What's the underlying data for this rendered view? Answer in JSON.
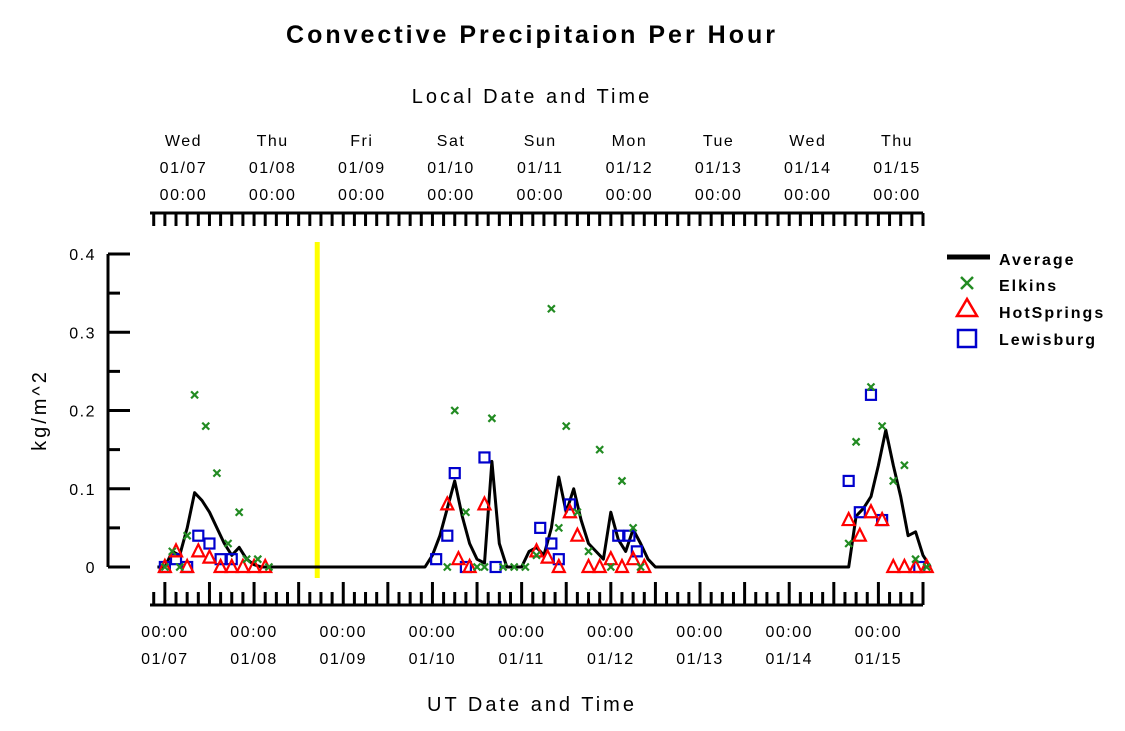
{
  "chart_data": {
    "type": "line",
    "title": "Convective Precipitaion Per Hour",
    "top_axis_label": "Local Date and Time",
    "bottom_axis_label": "UT Date and Time",
    "ylabel": "kg/m^2",
    "ylim": [
      0,
      0.4
    ],
    "y_ticks": [
      "0",
      "0.1",
      "0.2",
      "0.3",
      "0.4"
    ],
    "y_tick_values": [
      0,
      0.1,
      0.2,
      0.3,
      0.4
    ],
    "x_unit": "hours since 01/07 00:00 UT",
    "xlim": [
      -4,
      204
    ],
    "bottom_ticks": [
      {
        "x": 0,
        "time": "00:00",
        "date": "01/07"
      },
      {
        "x": 24,
        "time": "00:00",
        "date": "01/08"
      },
      {
        "x": 48,
        "time": "00:00",
        "date": "01/09"
      },
      {
        "x": 72,
        "time": "00:00",
        "date": "01/10"
      },
      {
        "x": 96,
        "time": "00:00",
        "date": "01/11"
      },
      {
        "x": 120,
        "time": "00:00",
        "date": "01/12"
      },
      {
        "x": 144,
        "time": "00:00",
        "date": "01/13"
      },
      {
        "x": 168,
        "time": "00:00",
        "date": "01/14"
      },
      {
        "x": 192,
        "time": "00:00",
        "date": "01/15"
      }
    ],
    "top_ticks": [
      {
        "x": 5,
        "day": "Wed",
        "date": "01/07",
        "time": "00:00"
      },
      {
        "x": 29,
        "day": "Thu",
        "date": "01/08",
        "time": "00:00"
      },
      {
        "x": 53,
        "day": "Fri",
        "date": "01/09",
        "time": "00:00"
      },
      {
        "x": 77,
        "day": "Sat",
        "date": "01/10",
        "time": "00:00"
      },
      {
        "x": 101,
        "day": "Sun",
        "date": "01/11",
        "time": "00:00"
      },
      {
        "x": 125,
        "day": "Mon",
        "date": "01/12",
        "time": "00:00"
      },
      {
        "x": 149,
        "day": "Tue",
        "date": "01/13",
        "time": "00:00"
      },
      {
        "x": 173,
        "day": "Wed",
        "date": "01/14",
        "time": "00:00"
      },
      {
        "x": 197,
        "day": "Thu",
        "date": "01/15",
        "time": "00:00"
      }
    ],
    "now_marker_x": 41,
    "legend": [
      {
        "name": "Average",
        "marker": "line"
      },
      {
        "name": "Elkins",
        "marker": "x"
      },
      {
        "name": "HotSprings",
        "marker": "triangle"
      },
      {
        "name": "Lewisburg",
        "marker": "square"
      }
    ],
    "series": [
      {
        "name": "Average",
        "color": "#000000",
        "points": [
          [
            -2,
            0
          ],
          [
            0,
            0
          ],
          [
            2,
            0.02
          ],
          [
            4,
            0.015
          ],
          [
            6,
            0.05
          ],
          [
            8,
            0.095
          ],
          [
            10,
            0.085
          ],
          [
            12,
            0.07
          ],
          [
            14,
            0.05
          ],
          [
            16,
            0.03
          ],
          [
            18,
            0.015
          ],
          [
            20,
            0.025
          ],
          [
            22,
            0.01
          ],
          [
            24,
            0.003
          ],
          [
            26,
            0
          ],
          [
            28,
            0
          ],
          [
            30,
            0
          ],
          [
            40,
            0
          ],
          [
            50,
            0
          ],
          [
            60,
            0
          ],
          [
            70,
            0
          ],
          [
            72,
            0.015
          ],
          [
            74,
            0.04
          ],
          [
            76,
            0.075
          ],
          [
            78,
            0.11
          ],
          [
            80,
            0.065
          ],
          [
            82,
            0.03
          ],
          [
            84,
            0.01
          ],
          [
            86,
            0.005
          ],
          [
            88,
            0.135
          ],
          [
            90,
            0.03
          ],
          [
            92,
            0
          ],
          [
            94,
            0
          ],
          [
            96,
            0
          ],
          [
            98,
            0.02
          ],
          [
            100,
            0.025
          ],
          [
            102,
            0.015
          ],
          [
            104,
            0.05
          ],
          [
            106,
            0.115
          ],
          [
            108,
            0.07
          ],
          [
            110,
            0.1
          ],
          [
            112,
            0.06
          ],
          [
            114,
            0.03
          ],
          [
            116,
            0.02
          ],
          [
            118,
            0.01
          ],
          [
            120,
            0.07
          ],
          [
            122,
            0.035
          ],
          [
            124,
            0.02
          ],
          [
            126,
            0.048
          ],
          [
            128,
            0.03
          ],
          [
            130,
            0.01
          ],
          [
            132,
            0
          ],
          [
            134,
            0
          ],
          [
            140,
            0
          ],
          [
            150,
            0
          ],
          [
            160,
            0
          ],
          [
            170,
            0
          ],
          [
            180,
            0
          ],
          [
            184,
            0
          ],
          [
            186,
            0.065
          ],
          [
            188,
            0.075
          ],
          [
            190,
            0.09
          ],
          [
            192,
            0.13
          ],
          [
            194,
            0.175
          ],
          [
            196,
            0.13
          ],
          [
            198,
            0.09
          ],
          [
            200,
            0.04
          ],
          [
            202,
            0.045
          ],
          [
            204,
            0.015
          ],
          [
            206,
            0
          ]
        ]
      },
      {
        "name": "Elkins",
        "color": "#228b22",
        "points": [
          [
            0,
            0
          ],
          [
            2,
            0.02
          ],
          [
            4,
            0
          ],
          [
            6,
            0.04
          ],
          [
            8,
            0.22
          ],
          [
            11,
            0.18
          ],
          [
            14,
            0.12
          ],
          [
            17,
            0.03
          ],
          [
            20,
            0.07
          ],
          [
            22,
            0.01
          ],
          [
            25,
            0.01
          ],
          [
            28,
            0
          ],
          [
            76,
            0
          ],
          [
            78,
            0.2
          ],
          [
            81,
            0.07
          ],
          [
            84,
            0
          ],
          [
            86,
            0
          ],
          [
            88,
            0.19
          ],
          [
            91,
            0
          ],
          [
            94,
            0
          ],
          [
            97,
            0
          ],
          [
            100,
            0.015
          ],
          [
            104,
            0.33
          ],
          [
            106,
            0.05
          ],
          [
            108,
            0.18
          ],
          [
            111,
            0.07
          ],
          [
            114,
            0.02
          ],
          [
            117,
            0.15
          ],
          [
            120,
            0
          ],
          [
            123,
            0.11
          ],
          [
            126,
            0.05
          ],
          [
            128,
            0
          ],
          [
            184,
            0.03
          ],
          [
            186,
            0.16
          ],
          [
            190,
            0.23
          ],
          [
            193,
            0.18
          ],
          [
            196,
            0.11
          ],
          [
            199,
            0.13
          ],
          [
            202,
            0.01
          ],
          [
            205,
            0
          ]
        ]
      },
      {
        "name": "HotSprings",
        "color": "#ff0000",
        "points": [
          [
            0,
            0
          ],
          [
            3,
            0.02
          ],
          [
            6,
            0
          ],
          [
            9,
            0.02
          ],
          [
            12,
            0.012
          ],
          [
            15,
            0
          ],
          [
            18,
            0
          ],
          [
            21,
            0
          ],
          [
            24,
            0
          ],
          [
            27,
            0
          ],
          [
            76,
            0.08
          ],
          [
            79,
            0.01
          ],
          [
            82,
            0
          ],
          [
            86,
            0.08
          ],
          [
            100,
            0.02
          ],
          [
            103,
            0.012
          ],
          [
            106,
            0
          ],
          [
            109,
            0.07
          ],
          [
            111,
            0.04
          ],
          [
            114,
            0
          ],
          [
            117,
            0
          ],
          [
            120,
            0.01
          ],
          [
            123,
            0
          ],
          [
            126,
            0.01
          ],
          [
            129,
            0
          ],
          [
            184,
            0.06
          ],
          [
            187,
            0.04
          ],
          [
            190,
            0.07
          ],
          [
            193,
            0.06
          ],
          [
            196,
            0
          ],
          [
            199,
            0
          ],
          [
            202,
            0
          ],
          [
            205,
            0
          ]
        ]
      },
      {
        "name": "Lewisburg",
        "color": "#0000cd",
        "points": [
          [
            0,
            0
          ],
          [
            3,
            0.01
          ],
          [
            6,
            0
          ],
          [
            9,
            0.04
          ],
          [
            12,
            0.03
          ],
          [
            15,
            0.01
          ],
          [
            18,
            0.01
          ],
          [
            73,
            0.01
          ],
          [
            76,
            0.04
          ],
          [
            78,
            0.12
          ],
          [
            81,
            0
          ],
          [
            86,
            0.14
          ],
          [
            89,
            0
          ],
          [
            101,
            0.05
          ],
          [
            104,
            0.03
          ],
          [
            106,
            0.01
          ],
          [
            109,
            0.08
          ],
          [
            122,
            0.04
          ],
          [
            125,
            0.04
          ],
          [
            127,
            0.02
          ],
          [
            184,
            0.11
          ],
          [
            187,
            0.07
          ],
          [
            190,
            0.22
          ],
          [
            193,
            0.06
          ],
          [
            203,
            0
          ]
        ]
      }
    ]
  }
}
